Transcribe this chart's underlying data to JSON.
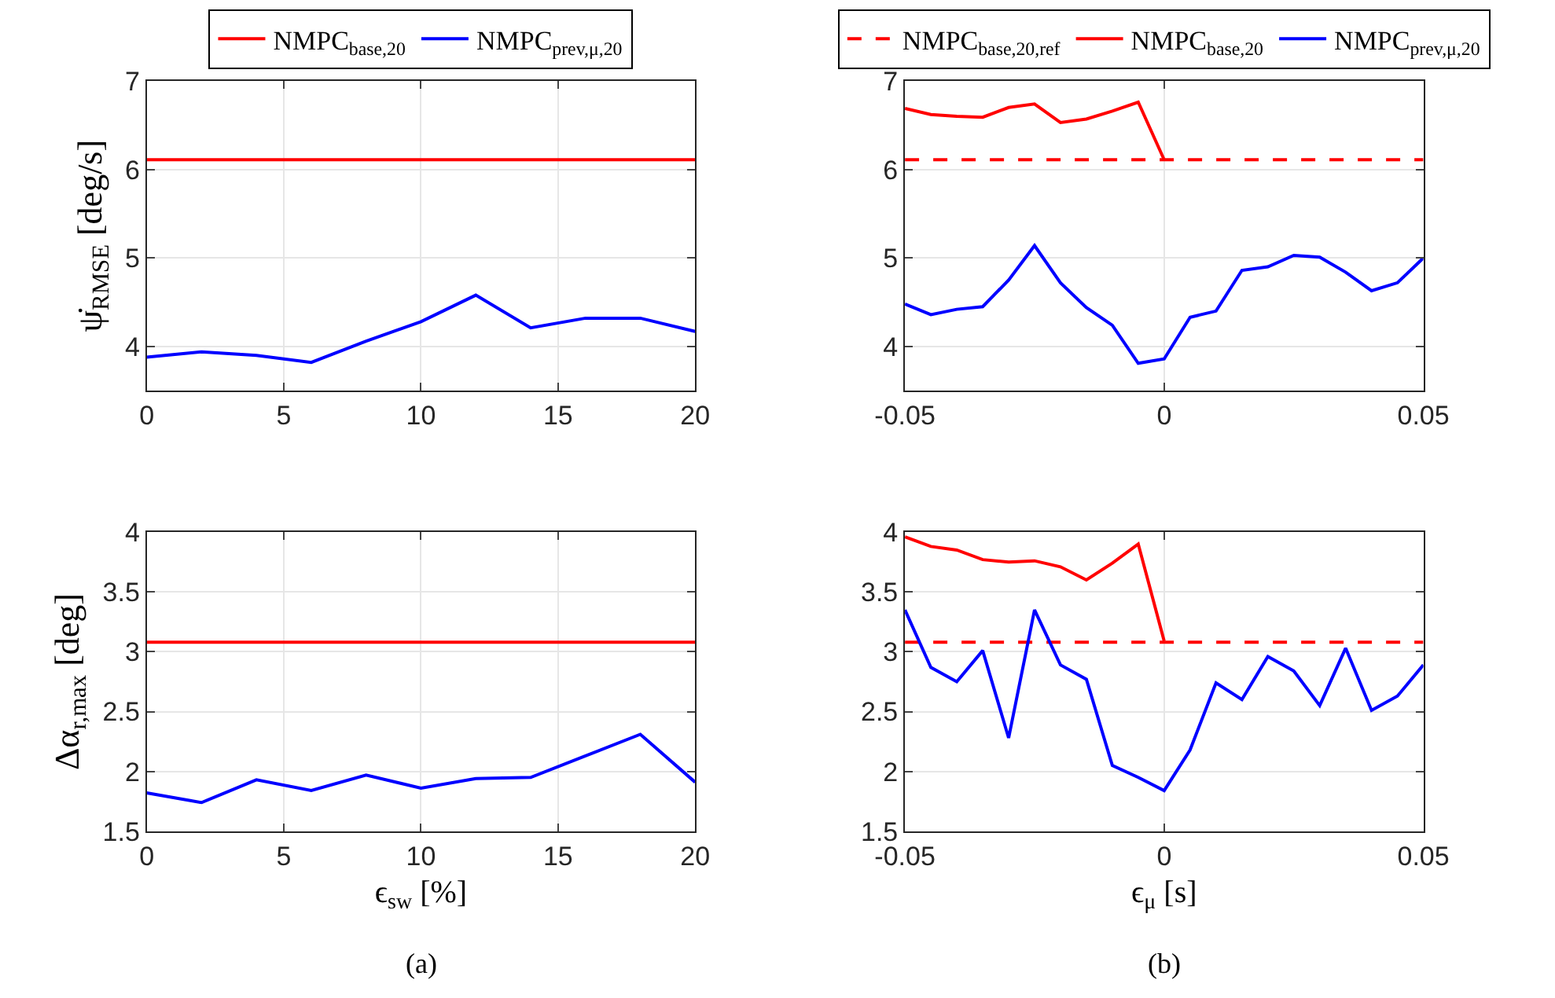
{
  "chart_data": [
    {
      "type": "line",
      "ylabel": "ψ̇$_{RMSE}$ [deg/s]",
      "x": [
        0,
        2,
        4,
        6,
        8,
        10,
        12,
        14,
        16,
        18,
        20
      ],
      "xlim": [
        0,
        20
      ],
      "xticks": [
        0,
        5,
        10,
        15,
        20
      ],
      "ylim": [
        3.5,
        7
      ],
      "yticks": [
        4,
        5,
        6,
        7
      ],
      "grid": true,
      "legend": "top",
      "line_style": "solid",
      "series": [
        {
          "name": "NMPC$_{base,20}$",
          "color": "#ff0000",
          "values": [
            6.11,
            6.11,
            6.11,
            6.11,
            6.11,
            6.11,
            6.11,
            6.11,
            6.11,
            6.11,
            6.11
          ]
        },
        {
          "name": "NMPC$_{prev,μ,20}$",
          "color": "#0000ff",
          "values": [
            3.88,
            3.94,
            3.9,
            3.82,
            4.06,
            4.28,
            4.58,
            4.21,
            4.32,
            4.32,
            4.17
          ]
        }
      ]
    },
    {
      "type": "line",
      "x": [
        -0.05,
        -0.045,
        -0.04,
        -0.035,
        -0.03,
        -0.025,
        -0.02,
        -0.015,
        -0.01,
        -0.005,
        0,
        0.005,
        0.01,
        0.015,
        0.02,
        0.025,
        0.03,
        0.035,
        0.04,
        0.045,
        0.05
      ],
      "xlim": [
        -0.05,
        0.05
      ],
      "xticks": [
        -0.05,
        0,
        0.05
      ],
      "ylim": [
        3.5,
        7
      ],
      "yticks": [
        4,
        5,
        6,
        7
      ],
      "grid": true,
      "legend": "top",
      "line_style": "solid",
      "series": [
        {
          "name": "NMPC$_{base,20,ref}$",
          "color": "#ff0000",
          "line_style": "dashed",
          "x": [
            -0.05,
            0.05
          ],
          "values": [
            6.11,
            6.11
          ]
        },
        {
          "name": "NMPC$_{base,20}$",
          "color": "#ff0000",
          "x": [
            -0.05,
            -0.045,
            -0.04,
            -0.035,
            -0.03,
            -0.025,
            -0.02,
            -0.015,
            -0.01,
            -0.005,
            0
          ],
          "values": [
            6.69,
            6.62,
            6.6,
            6.59,
            6.7,
            6.74,
            6.53,
            6.57,
            6.66,
            6.76,
            6.11
          ]
        },
        {
          "name": "NMPC$_{prev,μ,20}$",
          "color": "#0000ff",
          "values": [
            4.48,
            4.36,
            4.42,
            4.45,
            4.75,
            5.14,
            4.72,
            4.44,
            4.24,
            3.81,
            3.86,
            4.33,
            4.4,
            4.86,
            4.9,
            5.03,
            5.01,
            4.84,
            4.63,
            4.72,
            5.0
          ]
        }
      ]
    },
    {
      "type": "line",
      "ylabel": "Δα$_{r,max}$ [deg]",
      "xlabel": "ϵ$_{sw}$ [%]",
      "annotations": [
        "(a)"
      ],
      "x": [
        0,
        2,
        4,
        6,
        8,
        10,
        12,
        14,
        16,
        18,
        20
      ],
      "xlim": [
        0,
        20
      ],
      "xticks": [
        0,
        5,
        10,
        15,
        20
      ],
      "ylim": [
        1.5,
        4
      ],
      "yticks": [
        1.5,
        2,
        2.5,
        3,
        3.5,
        4
      ],
      "grid": true,
      "line_style": "solid",
      "series": [
        {
          "color": "#ff0000",
          "values": [
            3.08,
            3.08,
            3.08,
            3.08,
            3.08,
            3.08,
            3.08,
            3.08,
            3.08,
            3.08,
            3.08
          ]
        },
        {
          "color": "#0000ff",
          "values": [
            1.82,
            1.74,
            1.93,
            1.84,
            1.97,
            1.86,
            1.94,
            1.95,
            2.13,
            2.31,
            1.91
          ]
        }
      ]
    },
    {
      "type": "line",
      "xlabel": "ϵ$_{μ}$ [s]",
      "annotations": [
        "(b)"
      ],
      "x": [
        -0.05,
        -0.045,
        -0.04,
        -0.035,
        -0.03,
        -0.025,
        -0.02,
        -0.015,
        -0.01,
        -0.005,
        0,
        0.005,
        0.01,
        0.015,
        0.02,
        0.025,
        0.03,
        0.035,
        0.04,
        0.045,
        0.05
      ],
      "xlim": [
        -0.05,
        0.05
      ],
      "xticks": [
        -0.05,
        0,
        0.05
      ],
      "ylim": [
        1.5,
        4
      ],
      "yticks": [
        1.5,
        2,
        2.5,
        3,
        3.5,
        4
      ],
      "grid": true,
      "line_style": "solid",
      "series": [
        {
          "color": "#ff0000",
          "line_style": "dashed",
          "x": [
            -0.05,
            0.05
          ],
          "values": [
            3.08,
            3.08
          ]
        },
        {
          "color": "#ff0000",
          "x": [
            -0.05,
            -0.045,
            -0.04,
            -0.035,
            -0.03,
            -0.025,
            -0.02,
            -0.015,
            -0.01,
            -0.005,
            0
          ],
          "values": [
            3.96,
            3.88,
            3.85,
            3.77,
            3.75,
            3.76,
            3.71,
            3.6,
            3.74,
            3.9,
            3.09
          ]
        },
        {
          "color": "#0000ff",
          "values": [
            3.35,
            2.87,
            2.75,
            3.01,
            2.28,
            3.35,
            2.89,
            2.77,
            2.05,
            1.95,
            1.84,
            2.18,
            2.74,
            2.6,
            2.96,
            2.84,
            2.55,
            3.03,
            2.51,
            2.63,
            2.89
          ]
        }
      ]
    }
  ]
}
